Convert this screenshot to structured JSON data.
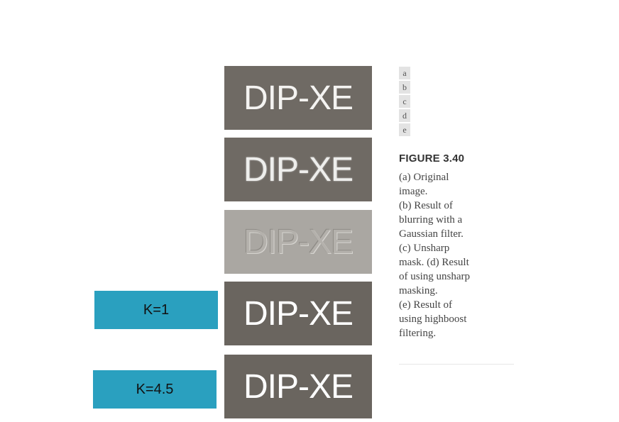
{
  "panels": [
    {
      "text": "DIP-XE"
    },
    {
      "text": "DIP-XE"
    },
    {
      "text": "DIP-XE"
    },
    {
      "text": "DIP-XE"
    },
    {
      "text": "DIP-XE"
    }
  ],
  "panel_labels": [
    "a",
    "b",
    "c",
    "d",
    "e"
  ],
  "figure": {
    "title": "FIGURE 3.40",
    "caption": "(a) Original\nimage.\n(b) Result of\nblurring with a\nGaussian filter.\n(c) Unsharp\nmask. (d) Result\nof using unsharp\nmasking.\n(e) Result of\nusing highboost\nfiltering."
  },
  "k_labels": {
    "k1": "K=1",
    "k2": "K=4.5"
  },
  "colors": {
    "panel_dark": "#6f6a64",
    "panel_mask": "#aaa7a2",
    "k_box": "#2aa0bf"
  }
}
